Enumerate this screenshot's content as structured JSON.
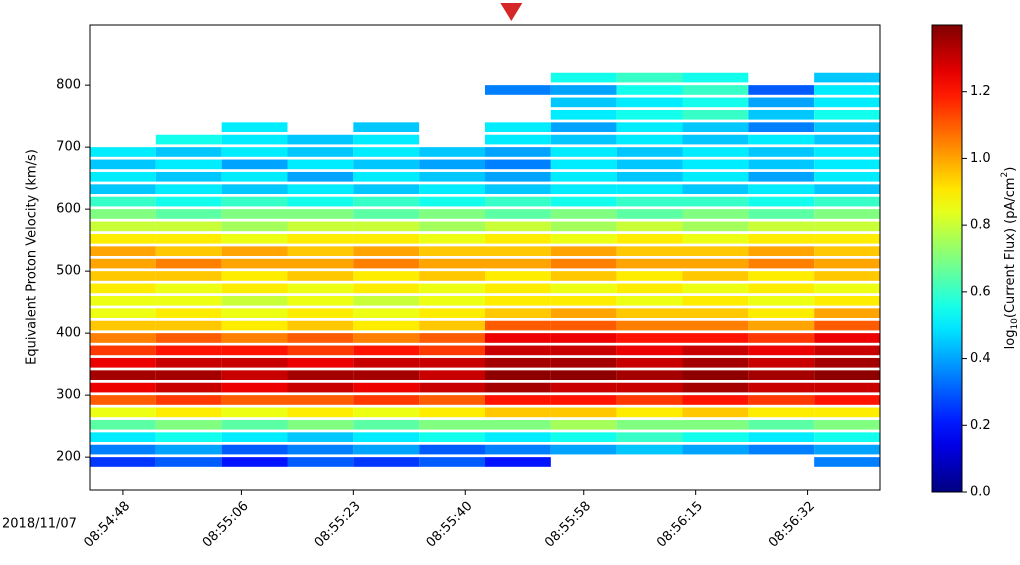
{
  "chart_data": {
    "type": "heatmap",
    "ylabel": "Equivalent Proton Velocity (km/s)",
    "x_date_label": "2018/11/07",
    "x": [
      "08:54:43",
      "08:54:53",
      "08:55:03",
      "08:55:13",
      "08:55:23",
      "08:55:33",
      "08:55:43",
      "08:55:53",
      "08:56:03",
      "08:56:13",
      "08:56:23",
      "08:56:33"
    ],
    "xlim": [
      "08:54:43",
      "08:56:43"
    ],
    "xticks": [
      "08:54:48",
      "08:55:06",
      "08:55:23",
      "08:55:40",
      "08:55:58",
      "08:56:15",
      "08:56:32"
    ],
    "y": [
      190,
      210,
      230,
      250,
      270,
      290,
      310,
      330,
      350,
      370,
      390,
      410,
      430,
      450,
      470,
      490,
      510,
      530,
      550,
      570,
      590,
      610,
      630,
      650,
      670,
      690,
      710,
      730,
      750,
      770,
      790,
      810
    ],
    "ylim": [
      147,
      897
    ],
    "yticks": [
      200,
      300,
      400,
      500,
      600,
      700,
      800
    ],
    "marker_x": "08:55:47",
    "marker_color": "#d62728",
    "colormap": "jet",
    "clim": [
      0,
      1.4
    ],
    "colorbar_ticks": [
      {
        "value": 0,
        "label": "0.0"
      },
      0.2,
      0.4,
      0.6,
      0.8,
      {
        "value": 1,
        "label": "1.0"
      },
      1.2
    ],
    "colorbar_label": [
      "log",
      "10",
      "(Current Flux) (pA/cm",
      "2",
      ")"
    ],
    "z": [
      [
        0.25,
        0.3,
        0.2,
        0.3,
        0.25,
        0.3,
        0.2,
        null,
        null,
        null,
        null,
        0.35
      ],
      [
        0.35,
        0.4,
        0.3,
        0.35,
        0.4,
        0.3,
        0.35,
        0.4,
        0.45,
        0.4,
        0.35,
        0.4
      ],
      [
        0.5,
        0.55,
        0.5,
        0.45,
        0.5,
        0.55,
        0.5,
        0.55,
        0.6,
        0.55,
        0.5,
        0.55
      ],
      [
        0.65,
        0.7,
        0.65,
        0.7,
        0.65,
        0.7,
        0.7,
        0.75,
        0.7,
        0.7,
        0.65,
        0.7
      ],
      [
        0.85,
        0.9,
        0.85,
        0.9,
        0.85,
        0.9,
        0.95,
        0.95,
        0.9,
        0.95,
        0.9,
        0.9
      ],
      [
        1.1,
        1.15,
        1.1,
        1.1,
        1.15,
        1.1,
        1.2,
        1.2,
        1.15,
        1.2,
        1.15,
        1.2
      ],
      [
        1.25,
        1.3,
        1.25,
        1.3,
        1.25,
        1.3,
        1.35,
        1.3,
        1.3,
        1.35,
        1.3,
        1.3
      ],
      [
        1.35,
        1.35,
        1.3,
        1.35,
        1.35,
        1.3,
        1.38,
        1.38,
        1.35,
        1.38,
        1.35,
        1.38
      ],
      [
        1.25,
        1.3,
        1.3,
        1.25,
        1.3,
        1.3,
        1.35,
        1.35,
        1.3,
        1.35,
        1.3,
        1.35
      ],
      [
        1.15,
        1.2,
        1.2,
        1.15,
        1.2,
        1.15,
        1.3,
        1.3,
        1.25,
        1.3,
        1.25,
        1.3
      ],
      [
        1.05,
        1.1,
        1.05,
        1.1,
        1.05,
        1.1,
        1.25,
        1.25,
        1.2,
        1.2,
        1.15,
        1.25
      ],
      [
        0.95,
        0.95,
        0.9,
        0.95,
        0.9,
        0.95,
        1.1,
        1.1,
        1.05,
        1.05,
        1.0,
        1.1
      ],
      [
        0.85,
        0.9,
        0.85,
        0.9,
        0.85,
        0.9,
        0.95,
        1.0,
        0.95,
        0.95,
        0.9,
        1.0
      ],
      [
        0.85,
        0.85,
        0.8,
        0.85,
        0.8,
        0.85,
        0.9,
        0.9,
        0.85,
        0.9,
        0.85,
        0.9
      ],
      [
        0.9,
        0.85,
        0.9,
        0.85,
        0.9,
        0.85,
        0.9,
        0.85,
        0.9,
        0.85,
        0.9,
        0.85
      ],
      [
        0.95,
        0.95,
        0.9,
        0.95,
        0.9,
        0.95,
        0.9,
        0.95,
        0.9,
        0.95,
        0.9,
        0.95
      ],
      [
        1.0,
        1.05,
        1.0,
        1.0,
        1.05,
        1.0,
        1.0,
        1.05,
        1.0,
        1.0,
        1.05,
        1.0
      ],
      [
        1.0,
        0.95,
        1.0,
        0.95,
        1.0,
        0.95,
        0.95,
        1.0,
        0.95,
        0.95,
        1.0,
        0.95
      ],
      [
        0.9,
        0.9,
        0.85,
        0.9,
        0.9,
        0.85,
        0.9,
        0.85,
        0.9,
        0.85,
        0.9,
        0.9
      ],
      [
        0.8,
        0.8,
        0.75,
        0.8,
        0.8,
        0.75,
        0.8,
        0.75,
        0.8,
        0.75,
        0.8,
        0.8
      ],
      [
        0.7,
        0.65,
        0.7,
        0.7,
        0.65,
        0.7,
        0.65,
        0.7,
        0.65,
        0.7,
        0.65,
        0.7
      ],
      [
        0.6,
        0.55,
        0.6,
        0.55,
        0.6,
        0.55,
        0.6,
        0.55,
        0.6,
        0.6,
        0.55,
        0.6
      ],
      [
        0.45,
        0.5,
        0.45,
        0.5,
        0.45,
        0.5,
        0.45,
        0.5,
        0.5,
        0.45,
        0.5,
        0.45
      ],
      [
        0.5,
        0.45,
        0.5,
        0.4,
        0.5,
        0.45,
        0.4,
        0.5,
        0.45,
        0.5,
        0.4,
        0.5
      ],
      [
        0.45,
        0.5,
        0.4,
        0.5,
        0.45,
        0.4,
        0.35,
        0.5,
        0.45,
        0.5,
        0.45,
        0.5
      ],
      [
        0.5,
        0.45,
        0.5,
        0.45,
        0.5,
        0.45,
        0.4,
        0.5,
        0.45,
        0.5,
        0.45,
        0.5
      ],
      [
        null,
        0.55,
        0.5,
        0.45,
        0.5,
        null,
        0.5,
        0.45,
        0.5,
        0.45,
        0.5,
        0.45
      ],
      [
        null,
        null,
        0.5,
        null,
        0.45,
        null,
        0.5,
        0.4,
        0.5,
        0.45,
        0.35,
        0.45
      ],
      [
        null,
        null,
        null,
        null,
        null,
        null,
        null,
        0.5,
        0.55,
        0.6,
        0.45,
        0.55
      ],
      [
        null,
        null,
        null,
        null,
        null,
        null,
        null,
        0.45,
        0.5,
        0.55,
        0.4,
        0.5
      ],
      [
        null,
        null,
        null,
        null,
        null,
        null,
        0.35,
        0.4,
        0.55,
        0.6,
        0.3,
        0.5
      ],
      [
        null,
        null,
        null,
        null,
        null,
        null,
        null,
        0.55,
        0.6,
        0.55,
        null,
        0.45
      ]
    ]
  }
}
